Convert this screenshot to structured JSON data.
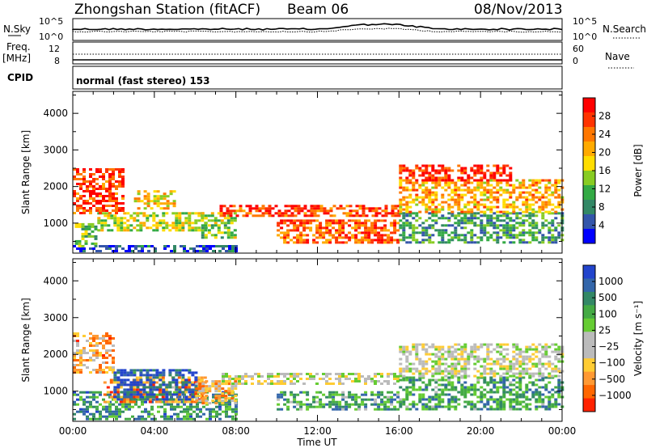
{
  "header": {
    "station": "Zhongshan Station (fitACF)",
    "beam": "Beam 06",
    "date": "08/Nov/2013"
  },
  "strip": {
    "nsky_label": "N.Sky",
    "nsearch_label": "N.Search",
    "freq_label_1": "Freq.",
    "freq_label_2": "[MHz]",
    "nave_label": "Nave",
    "cpid_label": "CPID",
    "cpid_text": "normal (fast stereo) 153",
    "noise_ticks": [
      "10^5",
      "10^0"
    ],
    "freq_ticks": [
      "12",
      "8"
    ],
    "nave_ticks": [
      "60",
      "0"
    ]
  },
  "chart_data": [
    {
      "type": "heatmap",
      "name": "power",
      "ylabel": "Slant Range [km]",
      "xlabel": "",
      "x_ticks": [
        "00:00",
        "04:00",
        "08:00",
        "12:00",
        "16:00",
        "20:00",
        "00:00"
      ],
      "xlim": [
        0,
        24
      ],
      "y_ticks": [
        1000,
        2000,
        3000,
        4000
      ],
      "ylim": [
        180,
        4600
      ],
      "colorbar": {
        "label": "Power [dB]",
        "ticks": [
          "28",
          "24",
          "20",
          "16",
          "12",
          "8",
          "4"
        ],
        "colors": [
          "#ff0000",
          "#ff3300",
          "#ff7700",
          "#ffaa00",
          "#ffdd00",
          "#88cc22",
          "#33aa44",
          "#338866",
          "#3355aa",
          "#0000ff"
        ]
      },
      "regions": [
        {
          "x": [
            0.0,
            8.0
          ],
          "y": [
            250,
            400
          ],
          "level": 0.85
        },
        {
          "x": [
            0.1,
            1.2
          ],
          "y": [
            400,
            1000
          ],
          "level": 0.6
        },
        {
          "x": [
            1.2,
            6.5
          ],
          "y": [
            800,
            1300
          ],
          "level": 0.5
        },
        {
          "x": [
            0.0,
            2.5
          ],
          "y": [
            1300,
            2500
          ],
          "level": 0.15
        },
        {
          "x": [
            3.0,
            5.0
          ],
          "y": [
            1400,
            1900
          ],
          "level": 0.4
        },
        {
          "x": [
            6.3,
            7.9
          ],
          "y": [
            600,
            1300
          ],
          "level": 0.55
        },
        {
          "x": [
            7.2,
            16.0
          ],
          "y": [
            1200,
            1500
          ],
          "level": 0.15
        },
        {
          "x": [
            10.0,
            16.0
          ],
          "y": [
            500,
            1100
          ],
          "level": 0.2
        },
        {
          "x": [
            16.0,
            24.0
          ],
          "y": [
            500,
            1300
          ],
          "level": 0.7
        },
        {
          "x": [
            16.0,
            24.0
          ],
          "y": [
            1300,
            2200
          ],
          "level": 0.35
        },
        {
          "x": [
            16.0,
            21.5
          ],
          "y": [
            2200,
            2600
          ],
          "level": 0.1
        }
      ]
    },
    {
      "type": "heatmap",
      "name": "velocity",
      "ylabel": "Slant Range [km]",
      "xlabel": "Time UT",
      "x_ticks": [
        "00:00",
        "04:00",
        "08:00",
        "12:00",
        "16:00",
        "20:00",
        "00:00"
      ],
      "xlim": [
        0,
        24
      ],
      "y_ticks": [
        1000,
        2000,
        3000,
        4000
      ],
      "ylim": [
        180,
        4600
      ],
      "colorbar": {
        "label": "Velocity [m s⁻¹]",
        "ticks": [
          "1000",
          "500",
          "100",
          "25",
          "−25",
          "−100",
          "−500",
          "−1000"
        ],
        "colors": [
          "#2244cc",
          "#3366aa",
          "#338866",
          "#44aa44",
          "#66cc33",
          "#bbbbbb",
          "#bbbbbb",
          "#ffcc33",
          "#ff9933",
          "#ff6600",
          "#ff2200"
        ]
      },
      "regions": [
        {
          "x": [
            0.0,
            8.0
          ],
          "y": [
            250,
            1000
          ],
          "level": 0.25
        },
        {
          "x": [
            0.0,
            2.0
          ],
          "y": [
            1500,
            2600
          ],
          "level": 0.75
        },
        {
          "x": [
            1.5,
            6.5
          ],
          "y": [
            700,
            1400
          ],
          "level": 0.8
        },
        {
          "x": [
            2.0,
            6.0
          ],
          "y": [
            800,
            1600
          ],
          "level": 0.1
        },
        {
          "x": [
            6.0,
            8.0
          ],
          "y": [
            700,
            1300
          ],
          "level": 0.7
        },
        {
          "x": [
            7.3,
            16.0
          ],
          "y": [
            1200,
            1500
          ],
          "level": 0.55
        },
        {
          "x": [
            10.0,
            16.0
          ],
          "y": [
            500,
            1000
          ],
          "level": 0.3
        },
        {
          "x": [
            16.0,
            24.0
          ],
          "y": [
            500,
            1400
          ],
          "level": 0.3
        },
        {
          "x": [
            16.0,
            24.0
          ],
          "y": [
            1400,
            2300
          ],
          "level": 0.55
        }
      ]
    }
  ]
}
